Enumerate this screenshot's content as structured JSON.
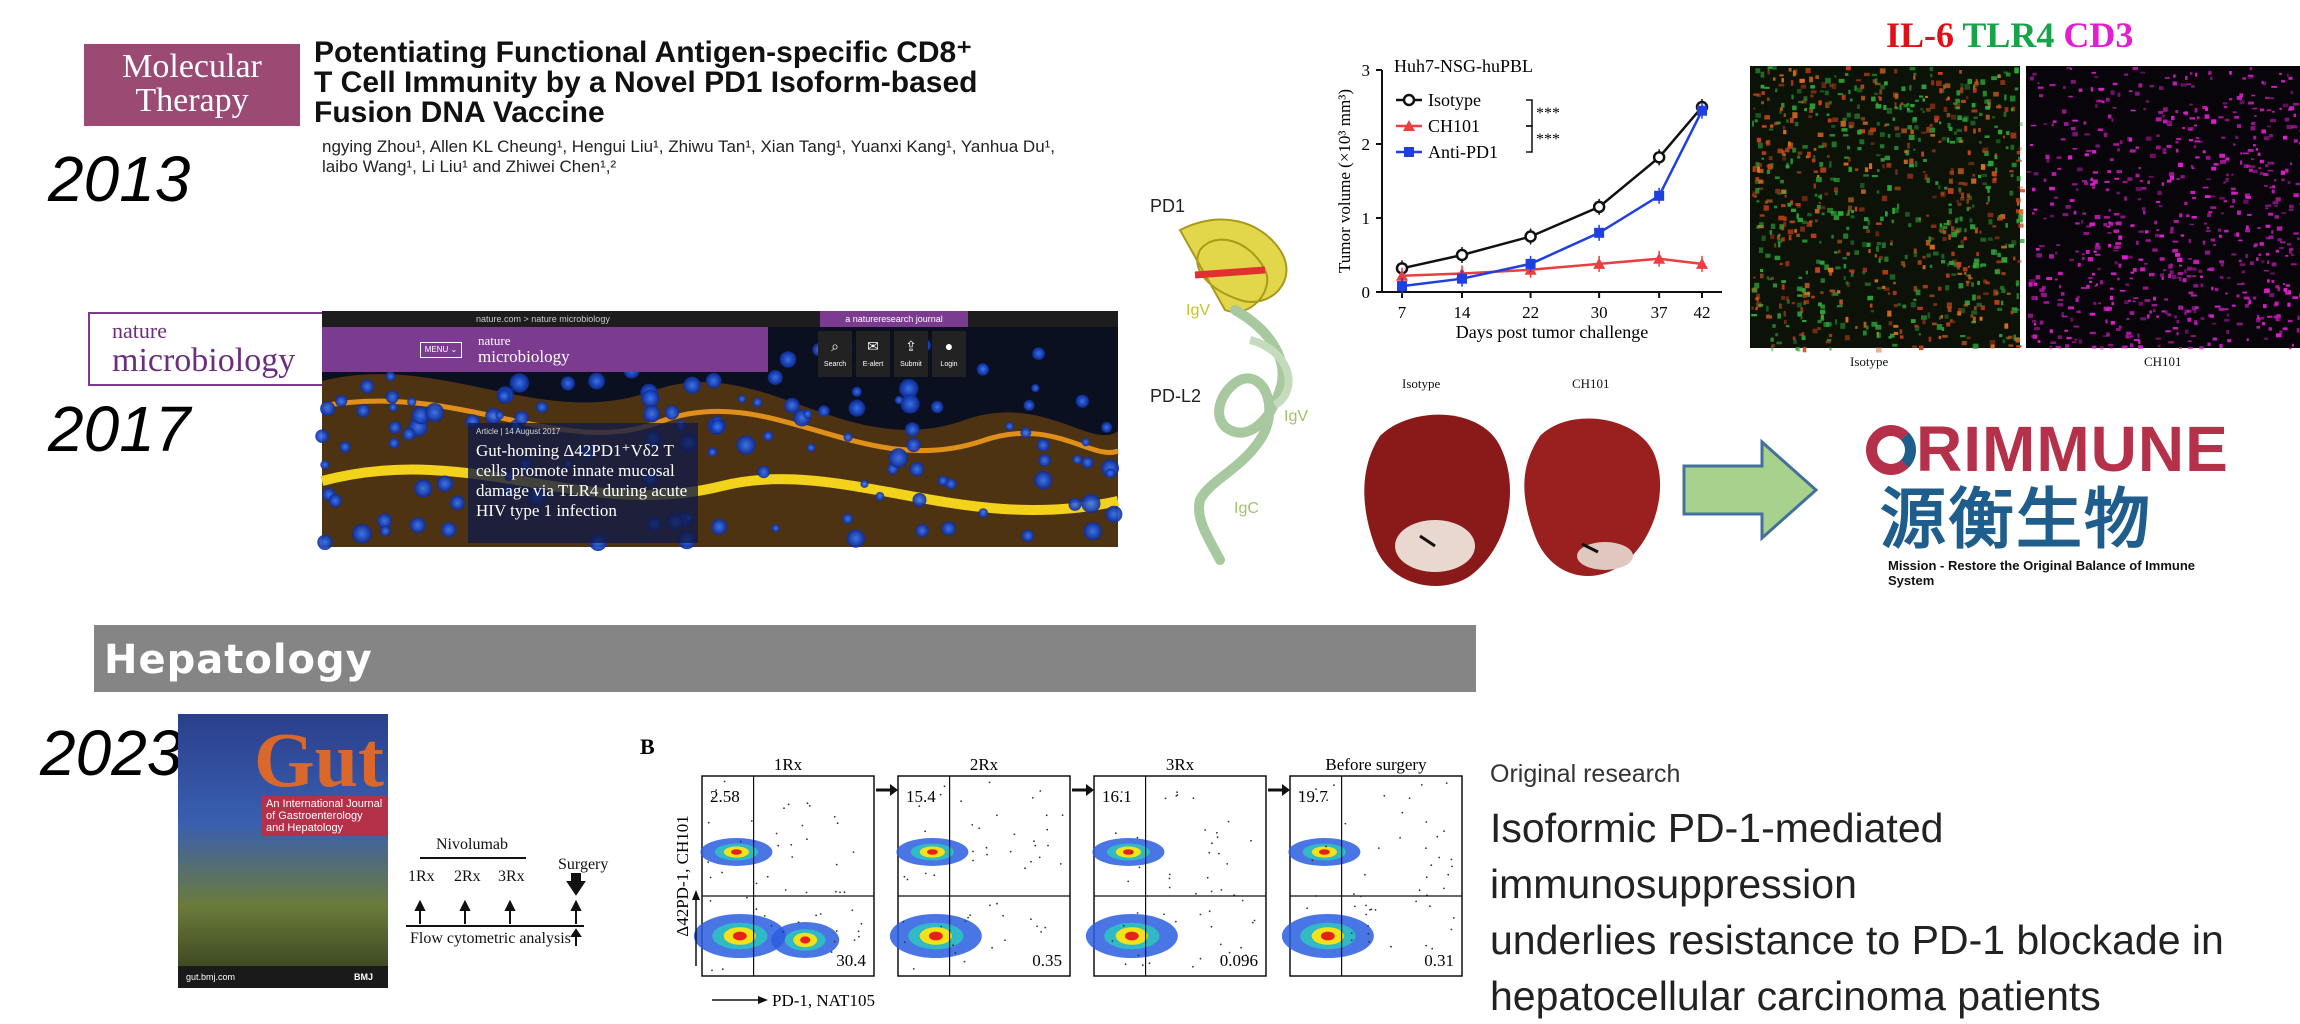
{
  "years": [
    "2013",
    "2017",
    "2023"
  ],
  "mt": {
    "logo_line1": "Molecular",
    "logo_line2": "Therapy",
    "title_line1": "Potentiating Functional Antigen-specific CD8⁺",
    "title_line2": "T Cell Immunity by a Novel PD1 Isoform-based",
    "title_line3": "Fusion DNA Vaccine",
    "authors_line1": "ngying Zhou¹, Allen KL Cheung¹, Hengui Liu¹, Zhiwu Tan¹, Xian Tang¹, Yuanxi Kang¹, Yanhua Du¹,",
    "authors_line2": "laibo Wang¹, Li Liu¹ and Zhiwei Chen¹,²"
  },
  "nm": {
    "logo_line1": "nature",
    "logo_line2": "microbiology",
    "topbar": "nature.com > nature microbiology",
    "journal_tag": "a natureresearch journal",
    "menu": "MENU ⌄",
    "brand_line1": "nature",
    "brand_line2": "microbiology",
    "icons": [
      {
        "icon": "search-icon",
        "glyph": "⌕",
        "label": "Search"
      },
      {
        "icon": "mail-icon",
        "glyph": "✉",
        "label": "E-alert"
      },
      {
        "icon": "submit-icon",
        "glyph": "⇪",
        "label": "Submit"
      },
      {
        "icon": "user-icon",
        "glyph": "●",
        "label": "Login"
      }
    ],
    "article_meta": "Article | 14 August 2017",
    "article_title": "Gut-homing Δ42PD1⁺Vδ2 T cells promote innate mucosal damage via TLR4 during acute HIV type 1 infection"
  },
  "structure": {
    "pd1": "PD1",
    "pdl2": "PD-L2",
    "igv1": "IgV",
    "igv2": "IgV",
    "igc": "IgC"
  },
  "chart_data": {
    "type": "line",
    "title": "Huh7-NSG-huPBL",
    "xlabel": "Days post tumor challenge",
    "ylabel": "Tumor volume (×10³ mm³)",
    "x": [
      7,
      14,
      22,
      30,
      37,
      42
    ],
    "ylim": [
      0,
      3
    ],
    "yticks": [
      0,
      1,
      2,
      3
    ],
    "series": [
      {
        "name": "Isotype",
        "color": "#111111",
        "marker": "circle",
        "values": [
          0.32,
          0.5,
          0.75,
          1.15,
          1.82,
          2.5
        ]
      },
      {
        "name": "CH101",
        "color": "#e84040",
        "marker": "triangle",
        "values": [
          0.22,
          0.25,
          0.3,
          0.38,
          0.45,
          0.38
        ]
      },
      {
        "name": "Anti-PD1",
        "color": "#1f3fe0",
        "marker": "square",
        "values": [
          0.08,
          0.18,
          0.38,
          0.8,
          1.3,
          2.45
        ]
      }
    ],
    "significance": [
      "***",
      "***"
    ]
  },
  "if_panel": {
    "title_a": "IL-6",
    "title_b": "TLR4",
    "title_c": "CD3",
    "color_a": "#e0101a",
    "color_b": "#17a34a",
    "color_c": "#e11fd0",
    "label_left": "Isotype",
    "label_right": "CH101"
  },
  "livers": {
    "label_left": "Isotype",
    "label_right": "CH101"
  },
  "orimmune": {
    "name": "RIMMUNE",
    "chinese": "源衡生物",
    "tagline": "Mission - Restore the Original Balance of Immune System",
    "red": "#b5314a",
    "blue": "#1f5d8c"
  },
  "hepatology": "Hepatology",
  "gut": {
    "masthead": "Gut",
    "subtitle": "An International Journal of Gastroenterology and Hepatology",
    "footer_left": "gut.bmj.com",
    "footer_right": "BMJ"
  },
  "timeline": {
    "drug": "Nivolumab",
    "doses": [
      "1Rx",
      "2Rx",
      "3Rx"
    ],
    "surgery": "Surgery",
    "analysis": "Flow cytometric analysis"
  },
  "flow": {
    "panel_letter": "B",
    "panels": [
      {
        "title": "1Rx",
        "upper_left": "2.58",
        "lower_right": "30.4"
      },
      {
        "title": "2Rx",
        "upper_left": "15.4",
        "lower_right": "0.35"
      },
      {
        "title": "3Rx",
        "upper_left": "16.1",
        "lower_right": "0.096"
      },
      {
        "title": "Before surgery",
        "upper_left": "19.7",
        "lower_right": "0.31"
      }
    ],
    "y_axis": "Δ42PD-1, CH101",
    "x_axis": "PD-1, NAT105"
  },
  "original_research": {
    "kicker": "Original research",
    "title_line1": "Isoformic PD-1-mediated immunosuppression",
    "title_line2": "underlies resistance to PD-1 blockade in",
    "title_line3": "hepatocellular carcinoma patients"
  }
}
